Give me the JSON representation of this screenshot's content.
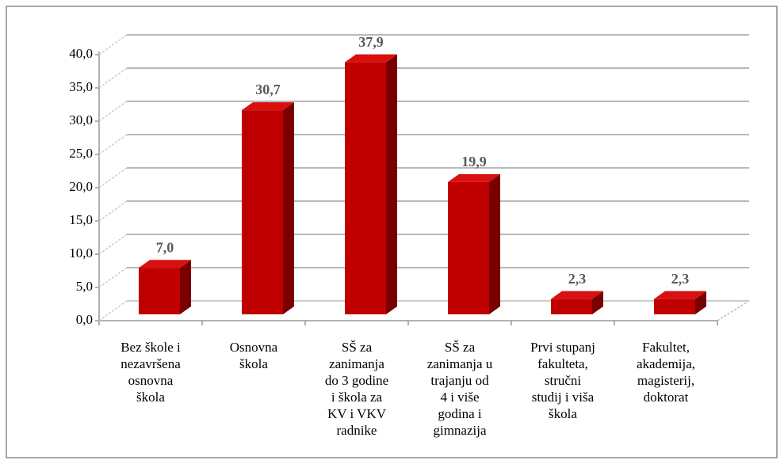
{
  "chart_data": {
    "type": "bar3d",
    "categories": [
      [
        "Bez škole i",
        "nezavršena",
        "osnovna",
        "škola"
      ],
      [
        "Osnovna",
        "škola"
      ],
      [
        "SŠ za",
        "zanimanja",
        "do 3 godine",
        "i škola za",
        "KV i VKV",
        "radnike"
      ],
      [
        "SŠ za",
        "zanimanja u",
        "trajanju od",
        "4 i više",
        "godina i",
        "gimnazija"
      ],
      [
        "Prvi stupanj",
        "fakulteta,",
        "stručni",
        "studij i viša",
        "škola"
      ],
      [
        "Fakultet,",
        "akademija,",
        "magisterij,",
        "doktorat"
      ]
    ],
    "values": [
      7.0,
      30.7,
      37.9,
      19.9,
      2.3,
      2.3
    ],
    "value_labels": [
      "7,0",
      "30,7",
      "37,9",
      "19,9",
      "2,3",
      "2,3"
    ],
    "color": "#c00000",
    "ylim": [
      0,
      40
    ],
    "yticks": [
      {
        "value": 0,
        "label": "0,0"
      },
      {
        "value": 5,
        "label": "5,0"
      },
      {
        "value": 10,
        "label": "10,0"
      },
      {
        "value": 15,
        "label": "15,0"
      },
      {
        "value": 20,
        "label": "20,0"
      },
      {
        "value": 25,
        "label": "25,0"
      },
      {
        "value": 30,
        "label": "30,0"
      },
      {
        "value": 35,
        "label": "35,0"
      },
      {
        "value": 40,
        "label": "40,0"
      }
    ],
    "grid": true
  }
}
